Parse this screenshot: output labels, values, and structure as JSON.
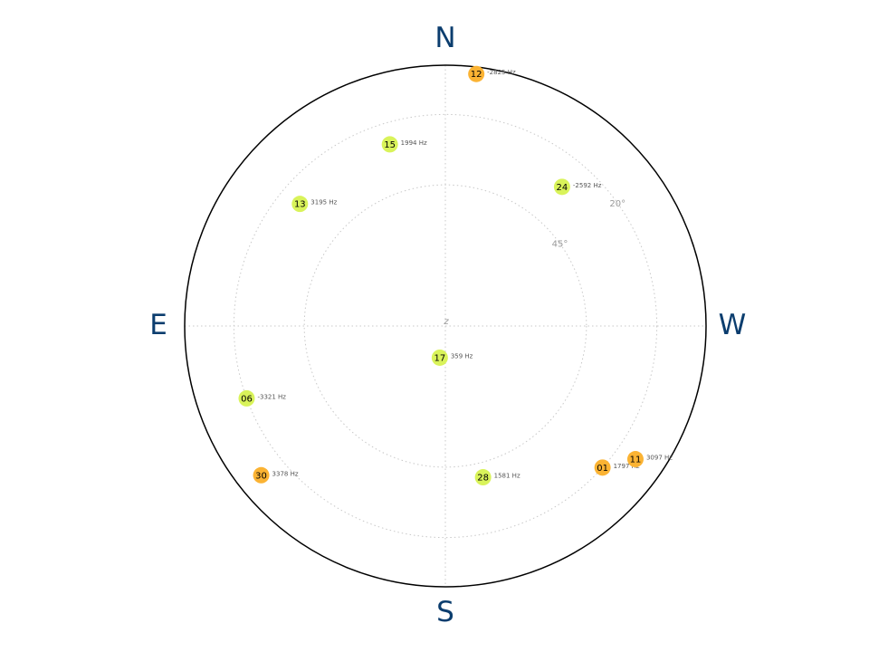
{
  "chart_data": {
    "type": "scatter",
    "projection": "polar-sky",
    "title": "",
    "center_label": "z",
    "directions": {
      "north": "N",
      "south": "S",
      "east": "E",
      "west": "W"
    },
    "elevation_rings": [
      {
        "elevation_deg": 45,
        "label": "45°"
      },
      {
        "elevation_deg": 20,
        "label": "20°"
      },
      {
        "elevation_deg": 0,
        "label": ""
      }
    ],
    "grid": true,
    "colors": {
      "outline": "#000000",
      "grid": "#c8c8c8",
      "cardinal": "#0b3d6e",
      "low_elevation_marker": "#fbb333",
      "high_elevation_marker": "#d9f35a"
    },
    "satellites": [
      {
        "id": "12",
        "doppler": "-2825 Hz",
        "azimuth_deg": 353,
        "elevation_deg": 3,
        "color": "#fbb333"
      },
      {
        "id": "15",
        "doppler": "1994 Hz",
        "azimuth_deg": 17,
        "elevation_deg": 28,
        "color": "#d9f35a"
      },
      {
        "id": "24",
        "doppler": "-2592 Hz",
        "azimuth_deg": 320,
        "elevation_deg": 31,
        "color": "#d9f35a"
      },
      {
        "id": "13",
        "doppler": "3195 Hz",
        "azimuth_deg": 50,
        "elevation_deg": 28,
        "color": "#d9f35a"
      },
      {
        "id": "17",
        "doppler": "359 Hz",
        "azimuth_deg": 170,
        "elevation_deg": 80,
        "color": "#d9f35a"
      },
      {
        "id": "06",
        "doppler": "-3321 Hz",
        "azimuth_deg": 110,
        "elevation_deg": 20,
        "color": "#d9f35a"
      },
      {
        "id": "30",
        "doppler": "3378 Hz",
        "azimuth_deg": 129,
        "elevation_deg": 10,
        "color": "#fbb333"
      },
      {
        "id": "28",
        "doppler": "1581 Hz",
        "azimuth_deg": 194,
        "elevation_deg": 40,
        "color": "#d9f35a"
      },
      {
        "id": "01",
        "doppler": "1797 Hz",
        "azimuth_deg": 228,
        "elevation_deg": 20,
        "color": "#fbb333"
      },
      {
        "id": "11",
        "doppler": "3097 Hz",
        "azimuth_deg": 235,
        "elevation_deg": 12,
        "color": "#fbb333"
      }
    ]
  }
}
